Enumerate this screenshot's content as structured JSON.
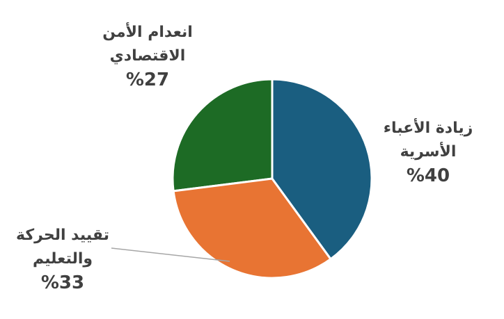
{
  "chart_data": {
    "type": "pie",
    "categories": [
      "زيادة الأعباء\nالأسرية",
      "تقييد الحركة\nوالتعليم",
      "انعدام الأمن\nالاقتصادي"
    ],
    "values": [
      40,
      33,
      27
    ],
    "value_labels": [
      "%40",
      "%33",
      "%27"
    ],
    "colors": [
      "#1a5e80",
      "#e87433",
      "#1d6b25"
    ]
  }
}
